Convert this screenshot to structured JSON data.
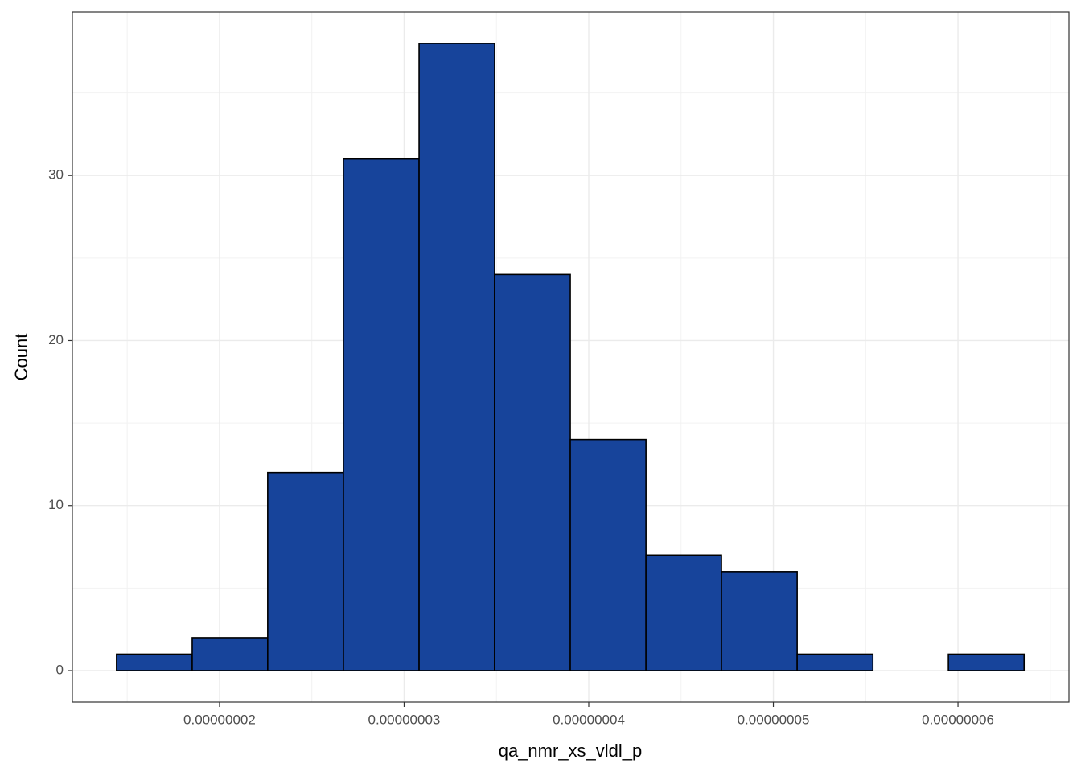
{
  "chart_data": {
    "type": "histogram",
    "x_label": "qa_nmr_xs_vldl_p",
    "y_label": "Count",
    "bins": [
      1.442e-08,
      1.852e-08,
      2.261e-08,
      2.671e-08,
      3.081e-08,
      3.49e-08,
      3.9e-08,
      4.31e-08,
      4.719e-08,
      5.129e-08,
      5.539e-08,
      5.948e-08,
      6.358e-08
    ],
    "values": [
      1,
      2,
      12,
      31,
      38,
      24,
      14,
      7,
      6,
      1,
      0,
      1
    ],
    "color": "#17449b",
    "edge_color": "#000000",
    "xlim": [
      1.203e-08,
      6.601e-08
    ],
    "xticks": [
      {
        "value": 2e-08,
        "label": "0.00000002"
      },
      {
        "value": 3e-08,
        "label": "0.00000003"
      },
      {
        "value": 4e-08,
        "label": "0.00000004"
      },
      {
        "value": 5e-08,
        "label": "0.00000005"
      },
      {
        "value": 6e-08,
        "label": "0.00000006"
      }
    ],
    "ylim": [
      -1.9,
      39.9
    ],
    "yticks": [
      0,
      10,
      20,
      30
    ],
    "grid": true
  }
}
